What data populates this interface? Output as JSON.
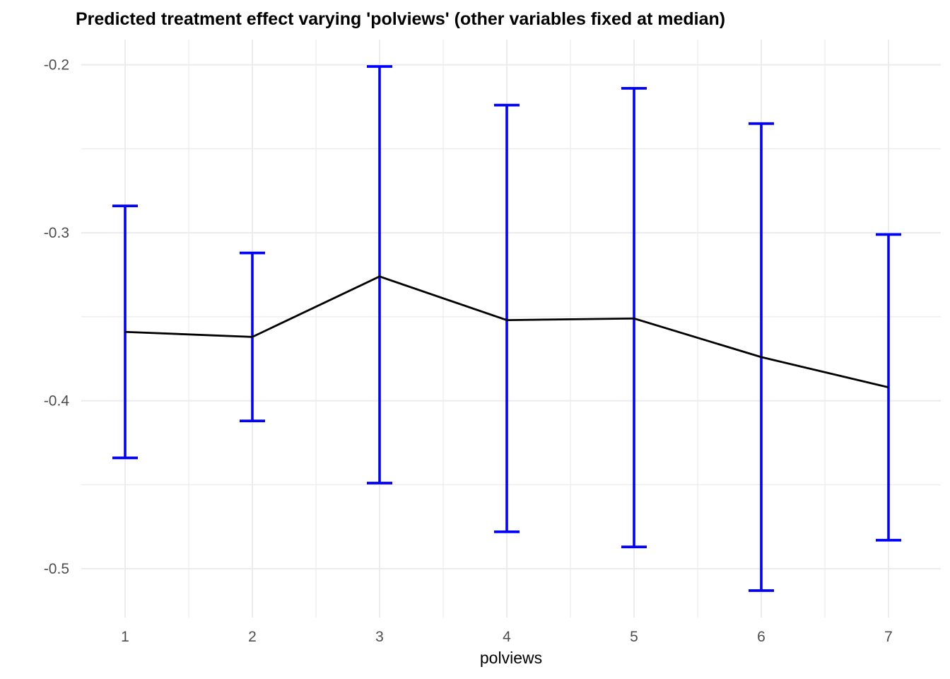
{
  "title": "Predicted treatment effect varying 'polviews' (other variables fixed at median)",
  "chart_data": {
    "type": "line",
    "title": "Predicted treatment effect varying 'polviews' (other variables fixed at median)",
    "xlabel": "polviews",
    "ylabel": "",
    "x": [
      1,
      2,
      3,
      4,
      5,
      6,
      7
    ],
    "series": [
      {
        "name": "predicted treatment effect",
        "values": [
          -0.359,
          -0.362,
          -0.326,
          -0.352,
          -0.351,
          -0.374,
          -0.392
        ]
      }
    ],
    "error_bars": {
      "upper": [
        -0.284,
        -0.312,
        -0.201,
        -0.224,
        -0.214,
        -0.235,
        -0.301
      ],
      "lower": [
        -0.434,
        -0.412,
        -0.449,
        -0.478,
        -0.487,
        -0.513,
        -0.483
      ]
    },
    "x_tick_labels": [
      "1",
      "2",
      "3",
      "4",
      "5",
      "6",
      "7"
    ],
    "y_tick_labels": [
      "-0.2",
      "-0.3",
      "-0.4",
      "-0.5"
    ],
    "y_ticks": [
      -0.2,
      -0.3,
      -0.4,
      -0.5
    ],
    "xlim": [
      0.7,
      7.3
    ],
    "ylim": [
      -0.529,
      -0.185
    ],
    "grid": "major+minor on, white panel",
    "legend": "none",
    "colors": {
      "line": "#000000",
      "error_bar": "#0000ff",
      "grid": "#ebebeb",
      "tick_label": "#4d4d4d",
      "axis_title": "#000000",
      "title": "#000000",
      "background": "#ffffff"
    }
  }
}
